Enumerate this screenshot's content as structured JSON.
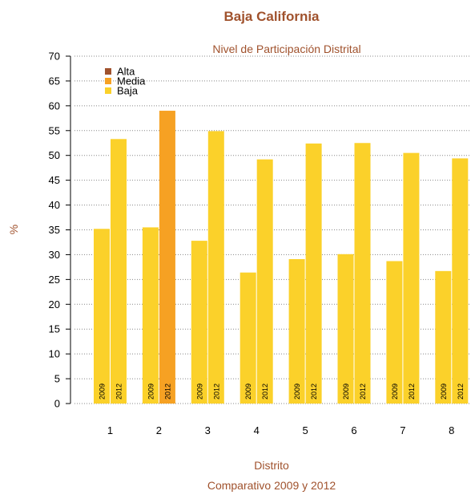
{
  "chart_data": {
    "type": "bar",
    "title": "Baja California",
    "subtitle": "Nivel de Participación Distrital",
    "xlabel": "Distrito",
    "xlabel_sub": "Comparativo 2009 y 2012",
    "ylabel": "%",
    "ylim": [
      0,
      70
    ],
    "yticks": [
      0,
      5,
      10,
      15,
      20,
      25,
      30,
      35,
      40,
      45,
      50,
      55,
      60,
      65,
      70
    ],
    "grid": true,
    "legend_position": "top-left",
    "legend": [
      {
        "label": "Alta",
        "color": "#a0522d"
      },
      {
        "label": "Media",
        "color": "#f6a123"
      },
      {
        "label": "Baja",
        "color": "#fbd12a"
      }
    ],
    "categories": [
      "1",
      "2",
      "3",
      "4",
      "5",
      "6",
      "7",
      "8"
    ],
    "bar_labels": [
      "2009",
      "2012"
    ],
    "series": [
      {
        "values": [
          35.2,
          35.5,
          32.8,
          26.4,
          29.1,
          30.1,
          28.7,
          26.7
        ],
        "levels": [
          "Baja",
          "Baja",
          "Baja",
          "Baja",
          "Baja",
          "Baja",
          "Baja",
          "Baja"
        ]
      },
      {
        "values": [
          53.3,
          59.0,
          54.9,
          49.2,
          52.4,
          52.5,
          50.5,
          49.4
        ],
        "levels": [
          "Baja",
          "Media",
          "Baja",
          "Baja",
          "Baja",
          "Baja",
          "Baja",
          "Baja"
        ]
      }
    ]
  }
}
